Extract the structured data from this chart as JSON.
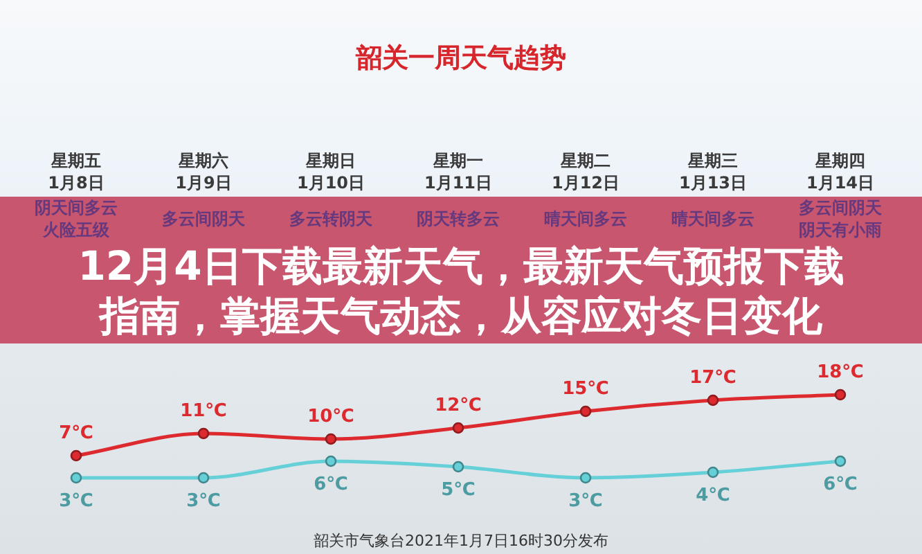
{
  "chart_data": {
    "type": "line",
    "title": "韶关一周天气趋势",
    "subtitle": "12月4日下载最新天气，最新天气预报下载指南，掌握天气动态，从容应对冬日变化",
    "categories": [
      "星期五1月8日",
      "星期六1月9日",
      "星期日1月10日",
      "星期一1月11日",
      "星期二1月12日",
      "星期三1月13日",
      "星期四1月14日"
    ],
    "series": [
      {
        "color": "#dc2a2e",
        "values": [
          7,
          11,
          10,
          12,
          15,
          17,
          18
        ],
        "value_labels": [
          "7℃",
          "11℃",
          "10℃",
          "12℃",
          "15℃",
          "17℃",
          "18℃"
        ]
      },
      {
        "color": "#66d0d8",
        "values": [
          3,
          3,
          6,
          5,
          3,
          4,
          6
        ],
        "value_labels": [
          "3℃",
          "3℃",
          "6℃",
          "5℃",
          "3℃",
          "4℃",
          "6℃"
        ]
      }
    ],
    "marker": "circle",
    "annotations": [
      "阴天间多云火险五级",
      "多云间阴天",
      "多云转阴天",
      "阴天转多云",
      "晴天间多云",
      "晴天间多云",
      "多云间阴天阴天有小雨",
      "韶关市气象台2021年1月7日16时30分发布"
    ]
  }
}
